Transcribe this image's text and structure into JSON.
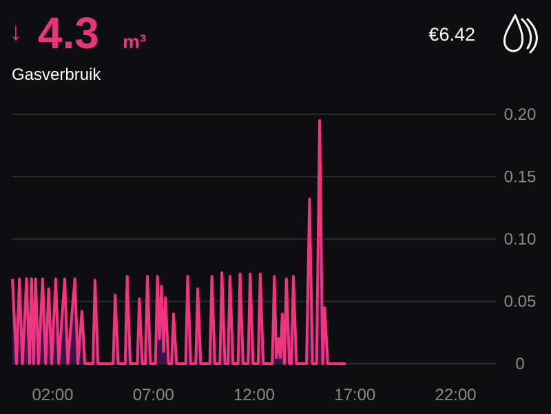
{
  "header": {
    "arrow": "↓",
    "amount": "4.3",
    "unit": "m³",
    "label": "Gasverbruik",
    "cost": "€6.42"
  },
  "chart_data": {
    "type": "line",
    "x": [
      0,
      0.2,
      0.35,
      0.5,
      0.7,
      0.85,
      0.95,
      1.05,
      1.15,
      1.3,
      1.5,
      1.65,
      1.8,
      1.95,
      2.15,
      2.3,
      2.6,
      2.75,
      3.1,
      3.25,
      3.45,
      3.6,
      4.0,
      4.1,
      4.25,
      5.0,
      5.1,
      5.25,
      5.6,
      5.7,
      5.85,
      6.2,
      6.3,
      6.45,
      6.6,
      6.7,
      6.85,
      7.1,
      7.2,
      7.3,
      7.4,
      7.5,
      7.6,
      7.75,
      7.9,
      8.0,
      8.15,
      8.6,
      8.7,
      8.85,
      9.1,
      9.2,
      9.35,
      9.8,
      9.9,
      10.05,
      10.3,
      10.4,
      10.55,
      10.7,
      10.8,
      10.95,
      11.2,
      11.3,
      11.45,
      11.7,
      11.8,
      11.95,
      12.2,
      12.3,
      12.45,
      12.9,
      13.0,
      13.1,
      13.2,
      13.3,
      13.4,
      13.5,
      13.6,
      13.75,
      13.85,
      13.95,
      14.1,
      14.6,
      14.75,
      14.9,
      15.1,
      15.25,
      15.4,
      15.5,
      15.65,
      16.55
    ],
    "values": [
      0.068,
      0,
      0.068,
      0,
      0.068,
      0,
      0.068,
      0,
      0.068,
      0,
      0.068,
      0,
      0.06,
      0,
      0.068,
      0,
      0.068,
      0,
      0.068,
      0,
      0.042,
      0,
      0,
      0.067,
      0,
      0,
      0.055,
      0,
      0,
      0.07,
      0,
      0,
      0.052,
      0,
      0,
      0.07,
      0,
      0,
      0.07,
      0.02,
      0.062,
      0.01,
      0.053,
      0,
      0,
      0.04,
      0,
      0,
      0.07,
      0,
      0,
      0.06,
      0,
      0,
      0.07,
      0,
      0,
      0.073,
      0,
      0,
      0.07,
      0,
      0,
      0.072,
      0,
      0,
      0.072,
      0,
      0,
      0.072,
      0,
      0,
      0.07,
      0.005,
      0.02,
      0.005,
      0.04,
      0,
      0.068,
      0,
      0,
      0.07,
      0,
      0,
      0.132,
      0,
      0,
      0.195,
      0,
      0.045,
      0,
      0
    ],
    "color": "#f0347f",
    "fill_color": "#3a1448",
    "xlim": [
      0,
      24
    ],
    "xticks": [
      {
        "value": 2,
        "label": "02:00"
      },
      {
        "value": 7,
        "label": "07:00"
      },
      {
        "value": 12,
        "label": "12:00"
      },
      {
        "value": 17,
        "label": "17:00"
      },
      {
        "value": 22,
        "label": "22:00"
      }
    ],
    "ylim": [
      0,
      0.2
    ],
    "yticks": [
      0,
      0.05,
      {
        "value": 0.1,
        "label": "0.10"
      },
      0.15,
      {
        "value": 0.2,
        "label": "0.20"
      }
    ],
    "grid": true
  }
}
